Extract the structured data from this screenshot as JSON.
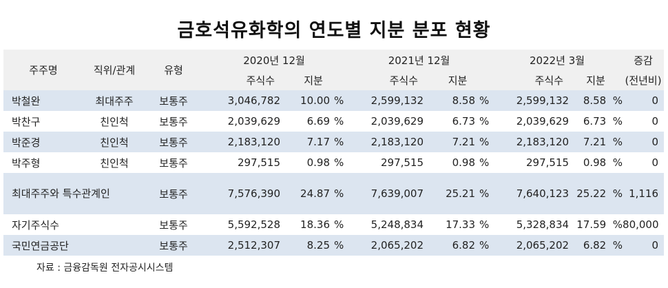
{
  "title": "금호석유화학의 연도별 지분 분포 현황",
  "headers": {
    "name": "주주명",
    "relation": "직위/관계",
    "type": "유형",
    "period1": "2020년 12월",
    "period2": "2021년 12월",
    "period3": "2022년 3월",
    "change_top": "증감",
    "shares": "주식수",
    "stake": "지분",
    "change_bottom": "(전년비)"
  },
  "rows": [
    {
      "name": "박철완",
      "relation": "최대주주",
      "type": "보통주",
      "s1": "3,046,782",
      "p1": "10.00",
      "s2": "2,599,132",
      "p2": "8.58",
      "s3": "2,599,132",
      "p3": "8.58",
      "change": "0"
    },
    {
      "name": "박찬구",
      "relation": "친인척",
      "type": "보통주",
      "s1": "2,039,629",
      "p1": "6.69",
      "s2": "2,039,629",
      "p2": "6.73",
      "s3": "2,039,629",
      "p3": "6.73",
      "change": "0"
    },
    {
      "name": "박준경",
      "relation": "친인척",
      "type": "보통주",
      "s1": "2,183,120",
      "p1": "7.17",
      "s2": "2,183,120",
      "p2": "7.21",
      "s3": "2,183,120",
      "p3": "7.21",
      "change": "0"
    },
    {
      "name": "박주형",
      "relation": "친인척",
      "type": "보통주",
      "s1": "297,515",
      "p1": "0.98",
      "s2": "297,515",
      "p2": "0.98",
      "s3": "297,515",
      "p3": "0.98",
      "change": "0"
    },
    {
      "name": "최대주주와 특수관계인",
      "relation": "",
      "type": "보통주",
      "s1": "7,576,390",
      "p1": "24.87",
      "s2": "7,639,007",
      "p2": "25.21",
      "s3": "7,640,123",
      "p3": "25.22",
      "change": "1,116"
    },
    {
      "name": "자기주식수",
      "relation": "",
      "type": "보통주",
      "s1": "5,592,528",
      "p1": "18.36",
      "s2": "5,248,834",
      "p2": "17.33",
      "s3": "5,328,834",
      "p3": "17.59",
      "change": "80,000"
    },
    {
      "name": "국민연금공단",
      "relation": "",
      "type": "보통주",
      "s1": "2,512,307",
      "p1": "8.25",
      "s2": "2,065,202",
      "p2": "6.82",
      "s3": "2,065,202",
      "p3": "6.82",
      "change": "0"
    }
  ],
  "percent_sign": "%",
  "source": "자료 : 금융감독원 전자공시시스템",
  "colors": {
    "header_bg": "#f0f0f0",
    "alt_row_bg": "#dce5f0"
  }
}
